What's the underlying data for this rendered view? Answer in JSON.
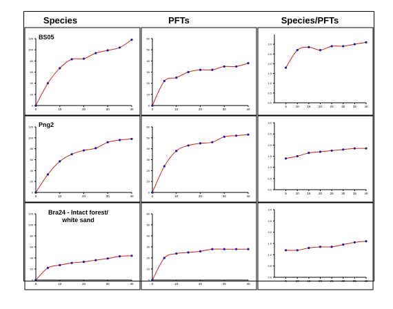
{
  "headers": [
    "Species",
    "PFTs",
    "Species/PFTs"
  ],
  "sites": [
    "BS05",
    "Png2",
    "Bra24 - Intact forest/\nwhite sand"
  ],
  "colors": {
    "line": "#cc2222",
    "marker": "#1a1aa0",
    "axis": "#000000"
  },
  "chart_data": [
    {
      "type": "line",
      "row": 0,
      "col": 0,
      "x": [
        0,
        5,
        10,
        15,
        20,
        25,
        30,
        35,
        40
      ],
      "values": [
        0,
        40,
        67,
        83,
        84,
        94,
        99,
        104,
        118
      ],
      "xlim": [
        0,
        40
      ],
      "ylim": [
        0,
        120
      ],
      "xticks": [
        0,
        10,
        20,
        30,
        40
      ],
      "yticks": [
        0,
        20,
        40,
        60,
        80,
        100,
        120
      ],
      "ytick_labels": [
        "0",
        "20",
        "40",
        "60",
        "80",
        "100",
        "120"
      ]
    },
    {
      "type": "line",
      "row": 0,
      "col": 1,
      "x": [
        0,
        5,
        10,
        15,
        20,
        25,
        30,
        35,
        40
      ],
      "values": [
        0,
        22,
        25,
        30,
        32,
        32,
        35,
        35,
        38
      ],
      "xlim": [
        0,
        40
      ],
      "ylim": [
        0,
        60
      ],
      "xticks": [
        0,
        10,
        20,
        30,
        40
      ],
      "yticks": [
        0,
        10,
        20,
        30,
        40,
        50,
        60
      ],
      "ytick_labels": [
        "0",
        "10",
        "20",
        "30",
        "40",
        "50",
        "60"
      ]
    },
    {
      "type": "line",
      "row": 0,
      "col": 2,
      "x": [
        5,
        10,
        15,
        20,
        25,
        30,
        35,
        40
      ],
      "values": [
        1.8,
        2.7,
        2.85,
        2.7,
        2.9,
        2.9,
        3.0,
        3.1
      ],
      "xlim": [
        0,
        40
      ],
      "ylim": [
        0,
        3.5
      ],
      "xticks": [
        5,
        10,
        15,
        20,
        25,
        30,
        35,
        40
      ],
      "yticks": [
        0,
        0.5,
        1,
        1.5,
        2,
        2.5,
        3
      ],
      "ytick_labels": [
        "0.0",
        "0.5",
        "1.0",
        "1.5",
        "2.0",
        "2.5",
        "3.0"
      ]
    },
    {
      "type": "line",
      "row": 1,
      "col": 0,
      "x": [
        0,
        5,
        10,
        15,
        20,
        25,
        30,
        35,
        40
      ],
      "values": [
        0,
        33,
        57,
        70,
        77,
        81,
        92,
        96,
        98
      ],
      "xlim": [
        0,
        40
      ],
      "ylim": [
        0,
        120
      ],
      "xticks": [
        0,
        10,
        20,
        30,
        40
      ],
      "yticks": [
        0,
        20,
        40,
        60,
        80,
        100,
        120
      ],
      "ytick_labels": [
        "0",
        "20",
        "40",
        "60",
        "80",
        "100",
        "120"
      ]
    },
    {
      "type": "line",
      "row": 1,
      "col": 1,
      "x": [
        0,
        5,
        10,
        15,
        20,
        25,
        30,
        35,
        40
      ],
      "values": [
        0,
        24,
        38,
        43,
        45,
        46,
        51,
        52,
        53
      ],
      "xlim": [
        0,
        40
      ],
      "ylim": [
        0,
        60
      ],
      "xticks": [
        0,
        10,
        20,
        30,
        40
      ],
      "yticks": [
        0,
        10,
        20,
        30,
        40,
        50,
        60
      ],
      "ytick_labels": [
        "0",
        "10",
        "20",
        "30",
        "40",
        "50",
        "60"
      ]
    },
    {
      "type": "line",
      "row": 1,
      "col": 2,
      "x": [
        5,
        10,
        15,
        20,
        25,
        30,
        35,
        40
      ],
      "values": [
        1.4,
        1.5,
        1.65,
        1.7,
        1.75,
        1.8,
        1.85,
        1.85
      ],
      "xlim": [
        0,
        40
      ],
      "ylim": [
        0,
        3.0
      ],
      "xticks": [
        5,
        10,
        15,
        20,
        25,
        30,
        35,
        40
      ],
      "yticks": [
        0,
        0.5,
        1,
        1.5,
        2,
        2.5,
        3
      ],
      "ytick_labels": [
        "0.0",
        "0.5",
        "1.0",
        "1.5",
        "2.0",
        "2.5",
        "3.0"
      ]
    },
    {
      "type": "line",
      "row": 2,
      "col": 0,
      "x": [
        0,
        5,
        10,
        15,
        20,
        25,
        30,
        35,
        40
      ],
      "values": [
        0,
        22,
        27,
        31,
        33,
        36,
        39,
        43,
        44
      ],
      "xlim": [
        0,
        40
      ],
      "ylim": [
        0,
        120
      ],
      "xticks": [
        0,
        10,
        20,
        30,
        40
      ],
      "yticks": [
        0,
        20,
        40,
        60,
        80,
        100,
        120
      ],
      "ytick_labels": [
        "0",
        "20",
        "40",
        "60",
        "80",
        "100",
        "120"
      ]
    },
    {
      "type": "line",
      "row": 2,
      "col": 1,
      "x": [
        0,
        5,
        10,
        15,
        20,
        25,
        30,
        35,
        40
      ],
      "values": [
        0,
        20,
        24,
        25,
        26,
        28,
        28,
        28,
        28
      ],
      "xlim": [
        0,
        40
      ],
      "ylim": [
        0,
        60
      ],
      "xticks": [
        0,
        10,
        20,
        30,
        40
      ],
      "yticks": [
        0,
        10,
        20,
        30,
        40,
        50,
        60
      ],
      "ytick_labels": [
        "0",
        "10",
        "20",
        "30",
        "40",
        "50",
        "60"
      ]
    },
    {
      "type": "line",
      "row": 2,
      "col": 2,
      "x": [
        5,
        10,
        15,
        20,
        25,
        30,
        35,
        40
      ],
      "values": [
        1.2,
        1.2,
        1.3,
        1.35,
        1.35,
        1.45,
        1.55,
        1.6
      ],
      "xlim": [
        0,
        40
      ],
      "ylim": [
        0,
        3.0
      ],
      "xticks": [
        5,
        10,
        15,
        20,
        25,
        30,
        35,
        40
      ],
      "yticks": [
        0,
        0.5,
        1,
        1.5,
        2,
        2.5,
        3
      ],
      "ytick_labels": [
        "0.0",
        "0.5",
        "1.0",
        "1.5",
        "2.0",
        "2.5",
        "3.0"
      ]
    }
  ]
}
